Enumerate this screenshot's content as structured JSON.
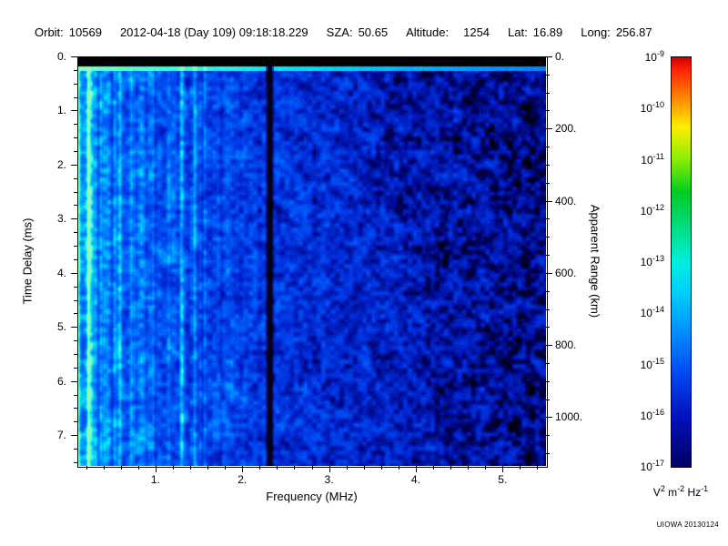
{
  "header": {
    "orbit_label": "Orbit:",
    "orbit_value": "10569",
    "datetime": "2012-04-18 (Day 109) 09:18:18.229",
    "sza_label": "SZA:",
    "sza_value": "50.65",
    "altitude_label": "Altitude:",
    "altitude_value": "1254",
    "lat_label": "Lat:",
    "lat_value": "16.89",
    "long_label": "Long:",
    "long_value": "256.87"
  },
  "credit": "UIOWA 20130124",
  "colors": {
    "background": "#ffffff",
    "text": "#000000",
    "field_dominant_blue": "#0030dd",
    "bright_echo_cyan": "#00e0f0"
  },
  "chart_data": {
    "type": "heatmap",
    "title": "",
    "xlabel": "Frequency (MHz)",
    "ylabel_left": "Time Delay (ms)",
    "ylabel_right": "Apparent Range (km)",
    "x_range_mhz": [
      0.1,
      5.5
    ],
    "y_range_ms": [
      0,
      7.57
    ],
    "y2_range_km": [
      0,
      1135
    ],
    "grid": false,
    "legend_position": "right-colorbar",
    "x_ticks": [
      {
        "v": 1,
        "label": "1."
      },
      {
        "v": 2,
        "label": "2."
      },
      {
        "v": 3,
        "label": "3."
      },
      {
        "v": 4,
        "label": "4."
      },
      {
        "v": 5,
        "label": "5."
      }
    ],
    "x_minor_step": 0.2,
    "y_ticks": [
      {
        "v": 0,
        "label": "0."
      },
      {
        "v": 1,
        "label": "1."
      },
      {
        "v": 2,
        "label": "2."
      },
      {
        "v": 3,
        "label": "3."
      },
      {
        "v": 4,
        "label": "4."
      },
      {
        "v": 5,
        "label": "5."
      },
      {
        "v": 6,
        "label": "6."
      },
      {
        "v": 7,
        "label": "7."
      }
    ],
    "y_minor_step": 0.25,
    "y2_ticks": [
      {
        "v": 0,
        "label": "0."
      },
      {
        "v": 200,
        "label": "200."
      },
      {
        "v": 400,
        "label": "400."
      },
      {
        "v": 600,
        "label": "600."
      },
      {
        "v": 800,
        "label": "800."
      },
      {
        "v": 1000,
        "label": "1000."
      }
    ],
    "y2_minor_step": 50,
    "colorbar": {
      "min_exp": -17,
      "max_exp": -9,
      "exponents": [
        "-9",
        "-10",
        "-11",
        "-12",
        "-13",
        "-14",
        "-15",
        "-16",
        "-17"
      ],
      "unit_parts": [
        [
          "V",
          "2"
        ],
        [
          "m",
          "-2"
        ],
        [
          "Hz",
          "-1"
        ]
      ],
      "gradient": [
        [
          0.0,
          "#cc0000"
        ],
        [
          0.03,
          "#ff2200"
        ],
        [
          0.1,
          "#ff8800"
        ],
        [
          0.17,
          "#ffee00"
        ],
        [
          0.25,
          "#88ee00"
        ],
        [
          0.33,
          "#00cc22"
        ],
        [
          0.42,
          "#00dd88"
        ],
        [
          0.5,
          "#00eedd"
        ],
        [
          0.58,
          "#00ccff"
        ],
        [
          0.68,
          "#0088ff"
        ],
        [
          0.78,
          "#0044ee"
        ],
        [
          0.88,
          "#0011bb"
        ],
        [
          1.0,
          "#000066"
        ]
      ]
    },
    "description": "Ionospheric radar sounder (AIS) spectrogram: broadband noisy echo field, brightest (cyan/green, ~1e-15 V2 m-2 Hz-1) below 1.5 MHz, fading to dark blue with black speckle (~1e-17) above 4 MHz. Black band at zero time delay, bright horizontal echo line near 0.25 ms across all frequencies, narrow dark absorption line at ~2.3 MHz, bright vertical emission stripes near 1.3-1.6 MHz and at the low-frequency edge.",
    "render": {
      "seed": 20130124,
      "top_black_rows": 11,
      "bright_line_rows": [
        11,
        15
      ],
      "dark_columns": [
        {
          "freq": 2.32,
          "halfwidth": 2.5
        }
      ],
      "bright_columns": [
        {
          "freq": 0.22,
          "halfwidth": 2.0,
          "boost": 0.28
        },
        {
          "freq": 1.3,
          "halfwidth": 2.0,
          "boost": 0.24
        },
        {
          "freq": 1.45,
          "halfwidth": 2.0,
          "boost": 0.18
        },
        {
          "freq": 1.57,
          "halfwidth": 1.5,
          "boost": 0.12
        }
      ],
      "colormap": [
        [
          0.0,
          "#000000"
        ],
        [
          0.1,
          "#000050"
        ],
        [
          0.2,
          "#0010a0"
        ],
        [
          0.35,
          "#0030dd"
        ],
        [
          0.55,
          "#0066ff"
        ],
        [
          0.7,
          "#00aaff"
        ],
        [
          0.8,
          "#00e0f8"
        ],
        [
          0.9,
          "#40ffd8"
        ],
        [
          1.0,
          "#90ffc0"
        ]
      ]
    }
  }
}
